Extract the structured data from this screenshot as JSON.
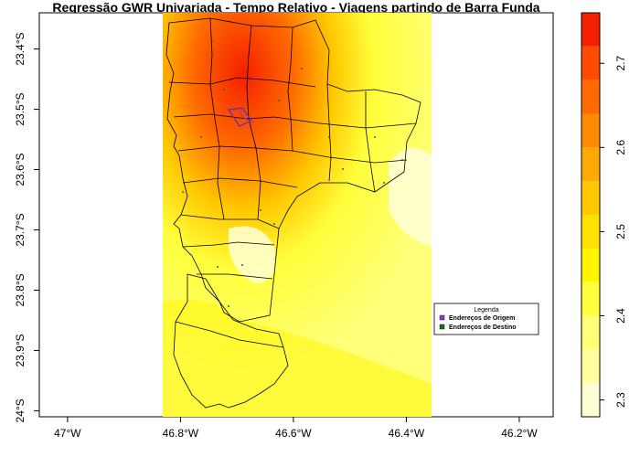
{
  "title": "Regressão GWR Univariada - Tempo Relativo - Viagens partindo de Barra Funda",
  "x_ticks": [
    {
      "value": -47.0,
      "label": "47°W"
    },
    {
      "value": -46.8,
      "label": "46.8°W"
    },
    {
      "value": -46.6,
      "label": "46.6°W"
    },
    {
      "value": -46.4,
      "label": "46.4°W"
    },
    {
      "value": -46.2,
      "label": "46.2°W"
    }
  ],
  "y_ticks": [
    {
      "value": -23.4,
      "label": "23.4°S"
    },
    {
      "value": -23.5,
      "label": "23.5°S"
    },
    {
      "value": -23.6,
      "label": "23.6°S"
    },
    {
      "value": -23.7,
      "label": "23.7°S"
    },
    {
      "value": -23.8,
      "label": "23.8°S"
    },
    {
      "value": -23.9,
      "label": "23.9°S"
    },
    {
      "value": -24.0,
      "label": "24°S"
    }
  ],
  "extent": {
    "lon": [
      -47.05,
      -46.14
    ],
    "lat": [
      -24.01,
      -23.34
    ]
  },
  "raster_extent": {
    "lon": [
      -46.83,
      -46.35
    ]
  },
  "colorbar": {
    "range": [
      2.28,
      2.76
    ],
    "ticks": [
      {
        "value": 2.3,
        "label": "2.3"
      },
      {
        "value": 2.4,
        "label": "2.4"
      },
      {
        "value": 2.5,
        "label": "2.5"
      },
      {
        "value": 2.6,
        "label": "2.6"
      },
      {
        "value": 2.7,
        "label": "2.7"
      }
    ],
    "colors": [
      "#FFFFD5",
      "#FFFFA0",
      "#FFFF78",
      "#FFFF3C",
      "#FFF500",
      "#FFE100",
      "#FFC800",
      "#FFAA00",
      "#FF8C00",
      "#FF6A00",
      "#FF4A00",
      "#F42000"
    ]
  },
  "legend": {
    "title": "Legenda",
    "items": [
      {
        "label": "Endereços de Origem",
        "color": "#9933CC"
      },
      {
        "label": "Endereços de Destino",
        "color": "#1E6B1E"
      }
    ]
  }
}
